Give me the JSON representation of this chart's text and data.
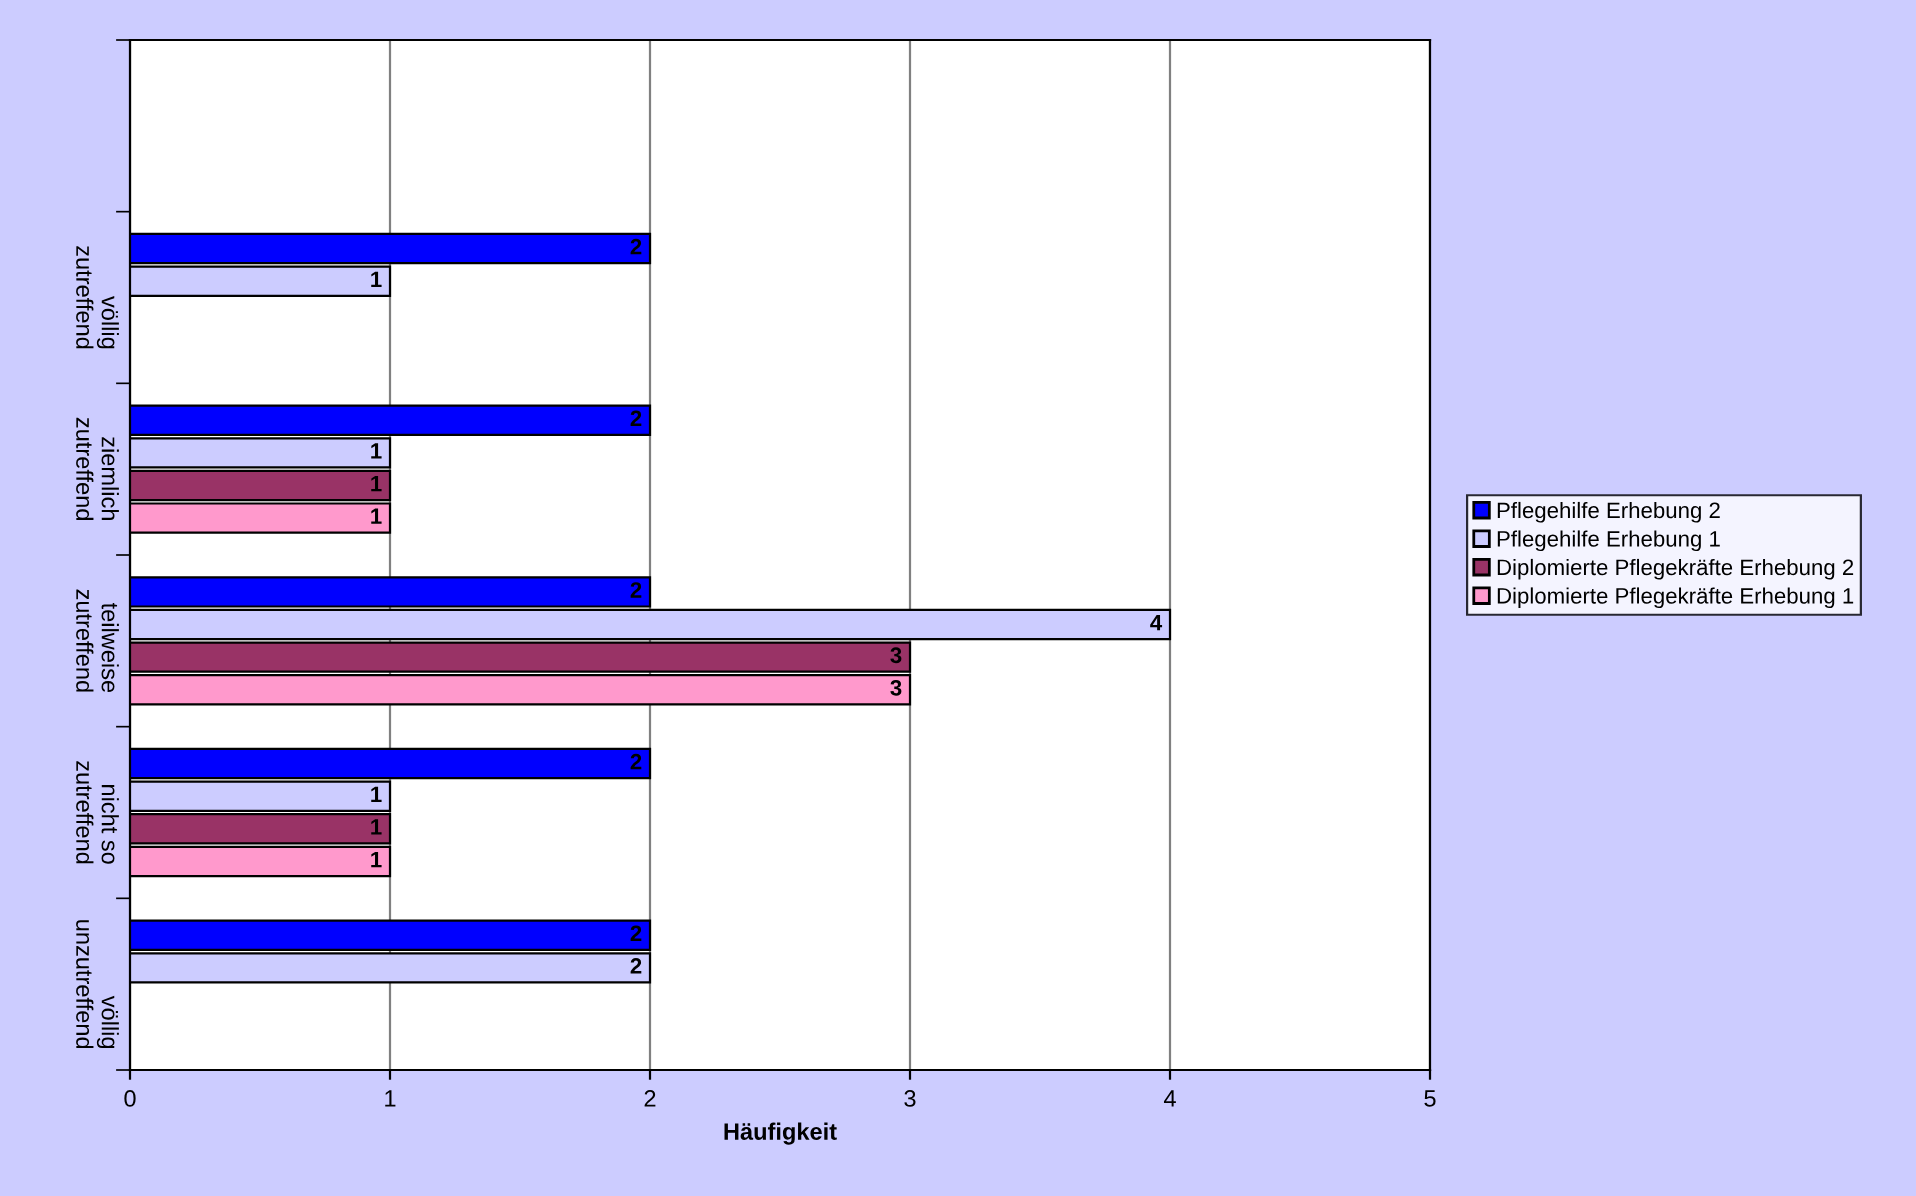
{
  "chart_data": {
    "type": "bar",
    "orientation": "horizontal",
    "xlabel": "Häufigkeit",
    "categories": [
      null,
      "völlig zutreffend",
      "ziemlich zutreffend",
      "teilweise zutreffend",
      "nicht so zutreffend",
      "völlig unzutreffend"
    ],
    "series": [
      {
        "name": "Pflegehilfe Erhebung 2",
        "color": "#0000ff",
        "values": [
          null,
          2,
          2,
          2,
          2,
          2
        ]
      },
      {
        "name": "Pflegehilfe Erhebung 1",
        "color": "#ccccff",
        "values": [
          null,
          1,
          1,
          4,
          1,
          2
        ]
      },
      {
        "name": "Diplomierte Pflegekräfte Erhebung 2",
        "color": "#993366",
        "values": [
          null,
          null,
          1,
          3,
          1,
          null
        ]
      },
      {
        "name": "Diplomierte Pflegekräfte Erhebung 1",
        "color": "#ff99cc",
        "values": [
          null,
          null,
          1,
          3,
          1,
          null
        ]
      }
    ],
    "xlim": [
      0,
      5
    ],
    "xticks": [
      0,
      1,
      2,
      3,
      4,
      5
    ],
    "grid": "x",
    "legend": "right",
    "data_labels": true
  }
}
